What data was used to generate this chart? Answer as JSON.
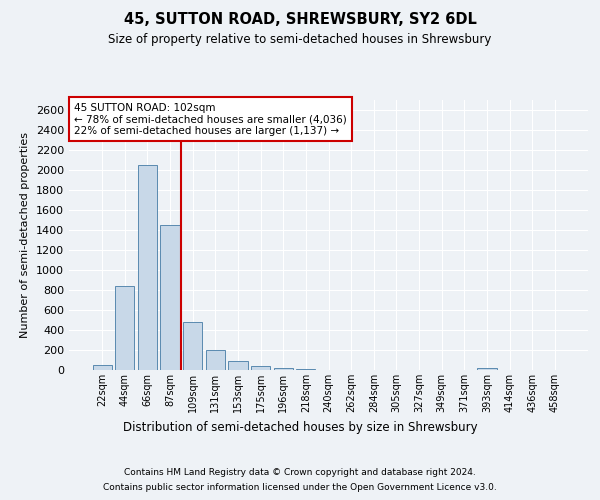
{
  "title_line1": "45, SUTTON ROAD, SHREWSBURY, SY2 6DL",
  "title_line2": "Size of property relative to semi-detached houses in Shrewsbury",
  "xlabel": "Distribution of semi-detached houses by size in Shrewsbury",
  "ylabel": "Number of semi-detached properties",
  "categories": [
    "22sqm",
    "44sqm",
    "66sqm",
    "87sqm",
    "109sqm",
    "131sqm",
    "153sqm",
    "175sqm",
    "196sqm",
    "218sqm",
    "240sqm",
    "262sqm",
    "284sqm",
    "305sqm",
    "327sqm",
    "349sqm",
    "371sqm",
    "393sqm",
    "414sqm",
    "436sqm",
    "458sqm"
  ],
  "values": [
    50,
    840,
    2050,
    1450,
    480,
    200,
    90,
    40,
    25,
    15,
    5,
    3,
    2,
    2,
    2,
    0,
    0,
    25,
    0,
    0,
    0
  ],
  "bar_color": "#c8d8e8",
  "bar_edge_color": "#5a8ab0",
  "marker_index": 4,
  "pct_smaller": 78,
  "n_smaller": 4036,
  "pct_larger": 22,
  "n_larger": 1137,
  "annotation_box_color": "#ffffff",
  "annotation_box_edge": "#cc0000",
  "marker_line_color": "#cc0000",
  "ylim": [
    0,
    2700
  ],
  "yticks": [
    0,
    200,
    400,
    600,
    800,
    1000,
    1200,
    1400,
    1600,
    1800,
    2000,
    2200,
    2400,
    2600
  ],
  "footer_line1": "Contains HM Land Registry data © Crown copyright and database right 2024.",
  "footer_line2": "Contains public sector information licensed under the Open Government Licence v3.0.",
  "bg_color": "#eef2f6",
  "grid_color": "#ffffff",
  "fig_bg_color": "#eef2f6"
}
